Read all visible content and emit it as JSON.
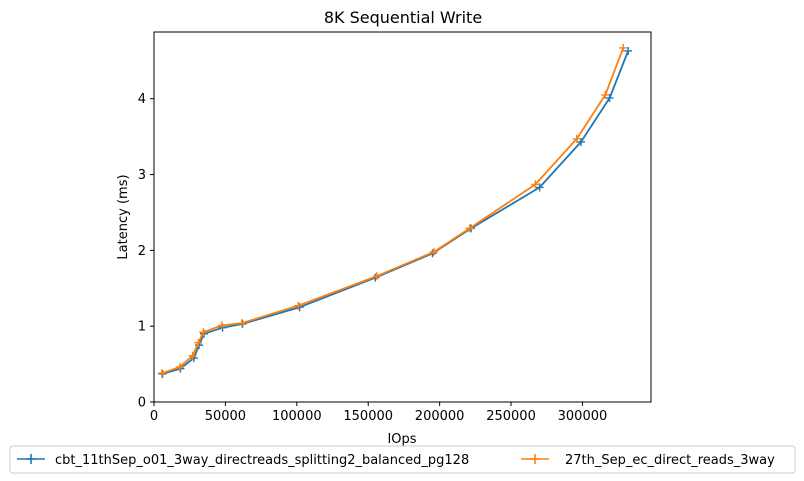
{
  "chart_data": {
    "type": "line",
    "title": "8K  Sequential Write",
    "xlabel": "IOps",
    "ylabel": "Latency (ms)",
    "xlim": [
      0,
      348000
    ],
    "ylim": [
      0,
      4.88
    ],
    "xticks": [
      0,
      50000,
      100000,
      150000,
      200000,
      250000,
      300000
    ],
    "yticks": [
      0,
      1,
      2,
      3,
      4
    ],
    "grid": false,
    "legend": "bottom, outside plot, 2 columns",
    "marker": "+",
    "series": [
      {
        "name": "cbt_11thSep_o01_3way_directreads_splitting2_balanced_pg128",
        "color": "#1f77b4",
        "x": [
          6000,
          18500,
          28000,
          31500,
          35000,
          48000,
          62000,
          102000,
          155000,
          195000,
          222000,
          270000,
          299000,
          319000,
          332000
        ],
        "y": [
          0.37,
          0.44,
          0.58,
          0.75,
          0.9,
          0.98,
          1.03,
          1.25,
          1.64,
          1.96,
          2.29,
          2.83,
          3.43,
          4.01,
          4.63
        ]
      },
      {
        "name": "27th_Sep_ec_direct_reads_3way",
        "color": "#ff7f0e",
        "x": [
          5500,
          18000,
          27000,
          31000,
          34500,
          47500,
          61500,
          101000,
          156000,
          196000,
          221000,
          267000,
          296000,
          316000,
          328500
        ],
        "y": [
          0.38,
          0.46,
          0.61,
          0.78,
          0.92,
          1.01,
          1.04,
          1.27,
          1.66,
          1.98,
          2.29,
          2.87,
          3.47,
          4.05,
          4.67
        ]
      }
    ]
  }
}
